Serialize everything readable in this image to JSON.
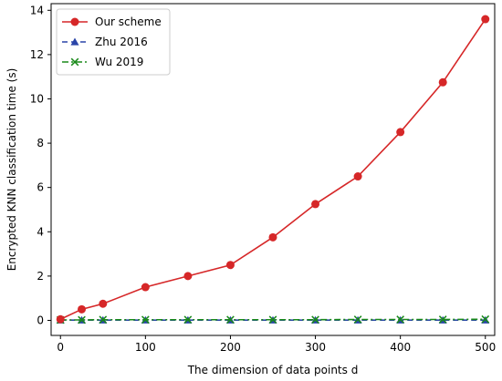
{
  "chart_data": {
    "type": "line",
    "title": "",
    "xlabel": "The dimension of data points d",
    "ylabel": "Encrypted KNN classification time (s)",
    "xlim": [
      -11,
      511
    ],
    "ylim": [
      -0.68,
      14.3
    ],
    "x_ticks": [
      0,
      100,
      200,
      300,
      400,
      500
    ],
    "y_ticks": [
      0,
      2,
      4,
      6,
      8,
      10,
      12,
      14
    ],
    "grid": false,
    "legend_position": "top-left",
    "x": [
      0,
      25,
      50,
      100,
      150,
      200,
      250,
      300,
      350,
      400,
      450,
      500
    ],
    "series": [
      {
        "name": "Our scheme",
        "color": "#d62728",
        "marker": "circle",
        "line_style": "solid",
        "values": [
          0.05,
          0.5,
          0.75,
          1.5,
          2.0,
          2.5,
          3.75,
          5.25,
          6.5,
          8.5,
          10.75,
          13.6
        ]
      },
      {
        "name": "Zhu 2016",
        "color": "#2a45a8",
        "marker": "triangle",
        "line_style": "dashed",
        "values": [
          0.01,
          0.01,
          0.01,
          0.01,
          0.01,
          0.01,
          0.01,
          0.01,
          0.01,
          0.01,
          0.01,
          0.01
        ]
      },
      {
        "name": "Wu 2019",
        "color": "#1a8a1a",
        "marker": "x",
        "line_style": "dashdot",
        "values": [
          0.02,
          0.02,
          0.03,
          0.03,
          0.03,
          0.03,
          0.03,
          0.03,
          0.04,
          0.04,
          0.04,
          0.05
        ]
      }
    ]
  }
}
